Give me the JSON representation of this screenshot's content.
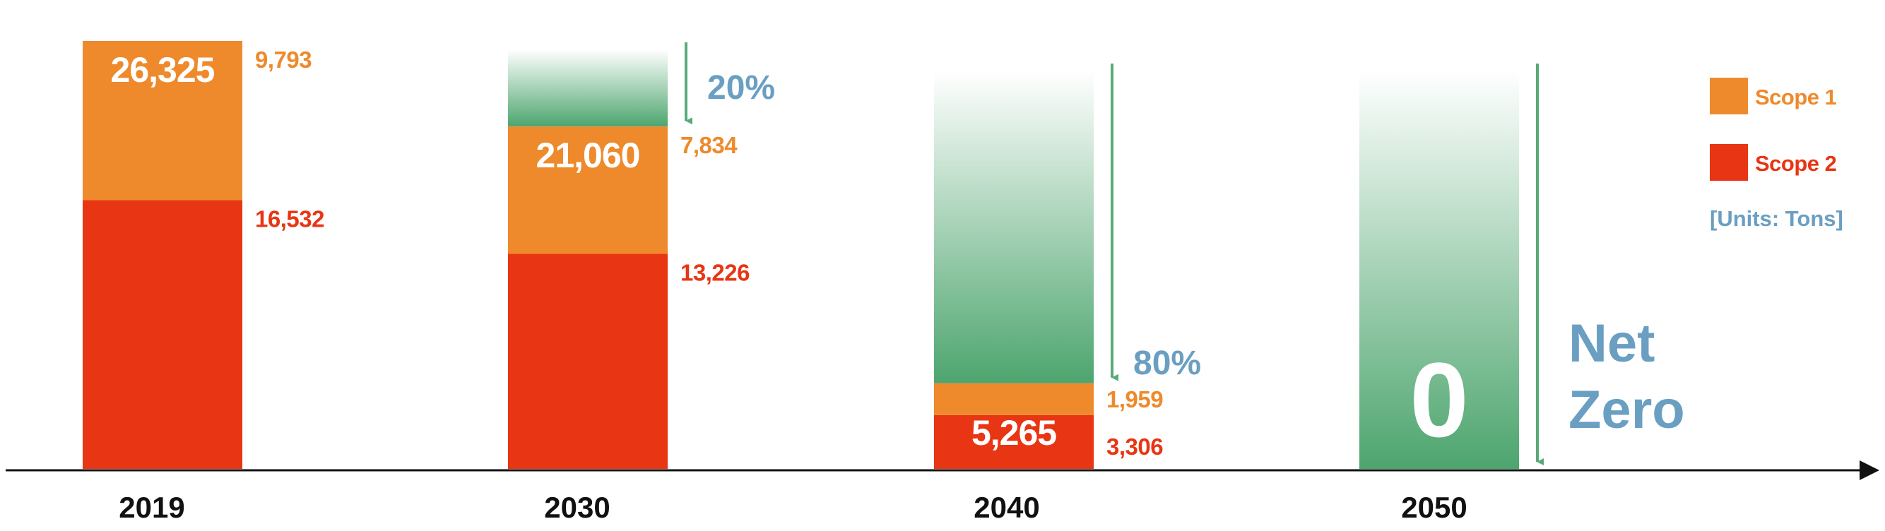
{
  "chart_data": {
    "type": "bar",
    "stacked": true,
    "categories": [
      "2019",
      "2030",
      "2040",
      "2050"
    ],
    "series": [
      {
        "name": "Scope 1",
        "color": "#EE8A2C",
        "values": [
          9793,
          7834,
          1959,
          0
        ]
      },
      {
        "name": "Scope 2",
        "color": "#E83513",
        "values": [
          16532,
          13226,
          3306,
          0
        ]
      }
    ],
    "totals": [
      "26,325",
      "21,060",
      "5,265",
      "0"
    ],
    "scope1_labels": [
      "9,793",
      "7,834",
      "1,959",
      ""
    ],
    "scope2_labels": [
      "16,532",
      "13,226",
      "3,306",
      ""
    ],
    "reductions": [
      "",
      "20%",
      "80%",
      ""
    ],
    "net_zero": "Net Zero",
    "units": "[Units: Tons]",
    "reduction_color": "#5BA97A",
    "annotation_color": "#6A9FC2",
    "ylim": [
      0,
      26325
    ],
    "legend_position": "top-right",
    "grid": false
  }
}
